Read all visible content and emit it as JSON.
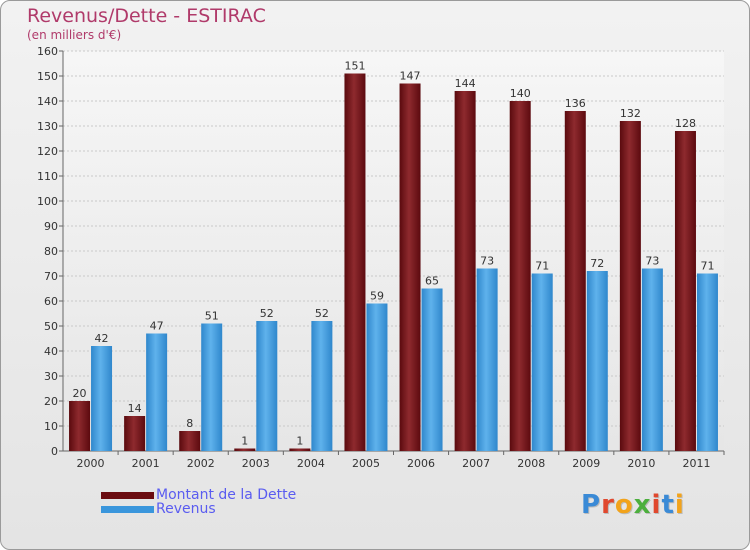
{
  "header": {
    "title": "Revenus/Dette - ESTIRAC",
    "subtitle": "(en milliers d'€)"
  },
  "legend": {
    "items": [
      {
        "label": "Montant de la Dette",
        "color": "#6b0c10"
      },
      {
        "label": "Revenus",
        "color": "#3a96dc"
      }
    ]
  },
  "logo": {
    "letters": [
      "P",
      "r",
      "o",
      "x",
      "i",
      "t",
      "i"
    ],
    "colors": [
      "#3a8ad6",
      "#e0482e",
      "#f2a31b",
      "#4caf3d",
      "#e0482e",
      "#3a8ad6",
      "#f2a31b"
    ]
  },
  "chart_data": {
    "type": "bar",
    "categories": [
      "2000",
      "2001",
      "2002",
      "2003",
      "2004",
      "2005",
      "2006",
      "2007",
      "2008",
      "2009",
      "2010",
      "2011"
    ],
    "series": [
      {
        "name": "Montant de la Dette",
        "values": [
          20,
          14,
          8,
          1,
          1,
          151,
          147,
          144,
          140,
          136,
          132,
          128
        ],
        "color": "#7a1217"
      },
      {
        "name": "Revenus",
        "values": [
          42,
          47,
          51,
          52,
          52,
          59,
          65,
          73,
          71,
          72,
          73,
          71
        ],
        "color": "#3d9be0"
      }
    ],
    "yticks": [
      0,
      10,
      20,
      30,
      40,
      50,
      60,
      70,
      80,
      90,
      100,
      110,
      120,
      130,
      140,
      150,
      160
    ],
    "ylim": [
      0,
      160
    ],
    "grid": true
  }
}
